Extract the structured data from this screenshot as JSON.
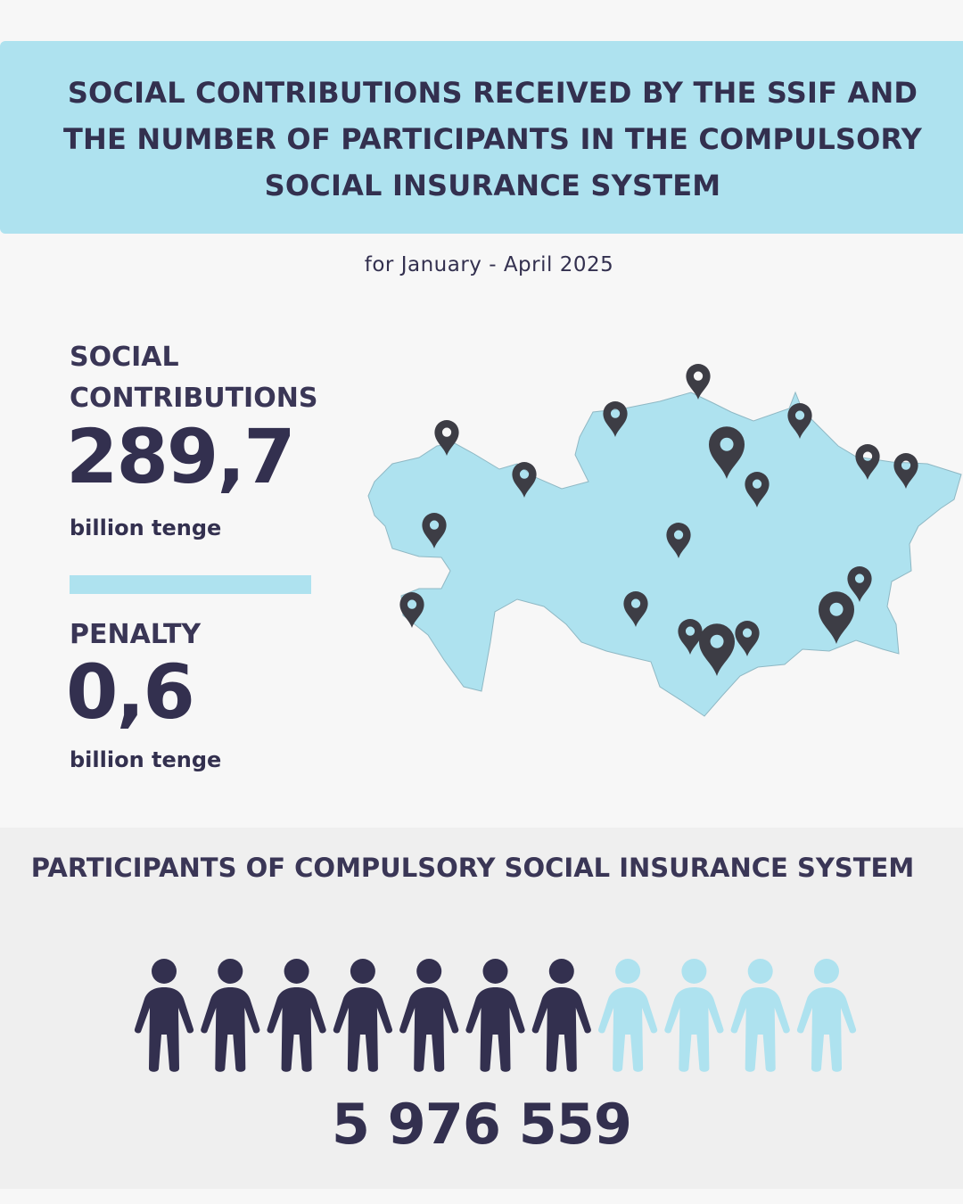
{
  "header": {
    "title": "SOCIAL CONTRIBUTIONS RECEIVED BY THE SSIF AND THE NUMBER OF PARTICIPANTS IN THE COMPULSORY SOCIAL INSURANCE SYSTEM"
  },
  "period": "for January - April 2025",
  "contributions": {
    "label": "SOCIAL CONTRIBUTIONS",
    "value": "289,7",
    "unit": "billion tenge"
  },
  "penalty": {
    "label": "PENALTY",
    "value": "0,6",
    "unit": "billion tenge"
  },
  "map": {
    "icon": "kazakhstan-map",
    "pin_icon": "map-pin-icon",
    "colors": {
      "land": "#aee2ef",
      "pin": "#3d3d45"
    }
  },
  "participants": {
    "title": "PARTICIPANTS OF COMPULSORY SOCIAL INSURANCE SYSTEM",
    "count": "5 976 559",
    "icon": "person-icon",
    "filled_fraction": 0.636,
    "colors": {
      "filled": "#33304f",
      "empty": "#aee2ef"
    }
  }
}
